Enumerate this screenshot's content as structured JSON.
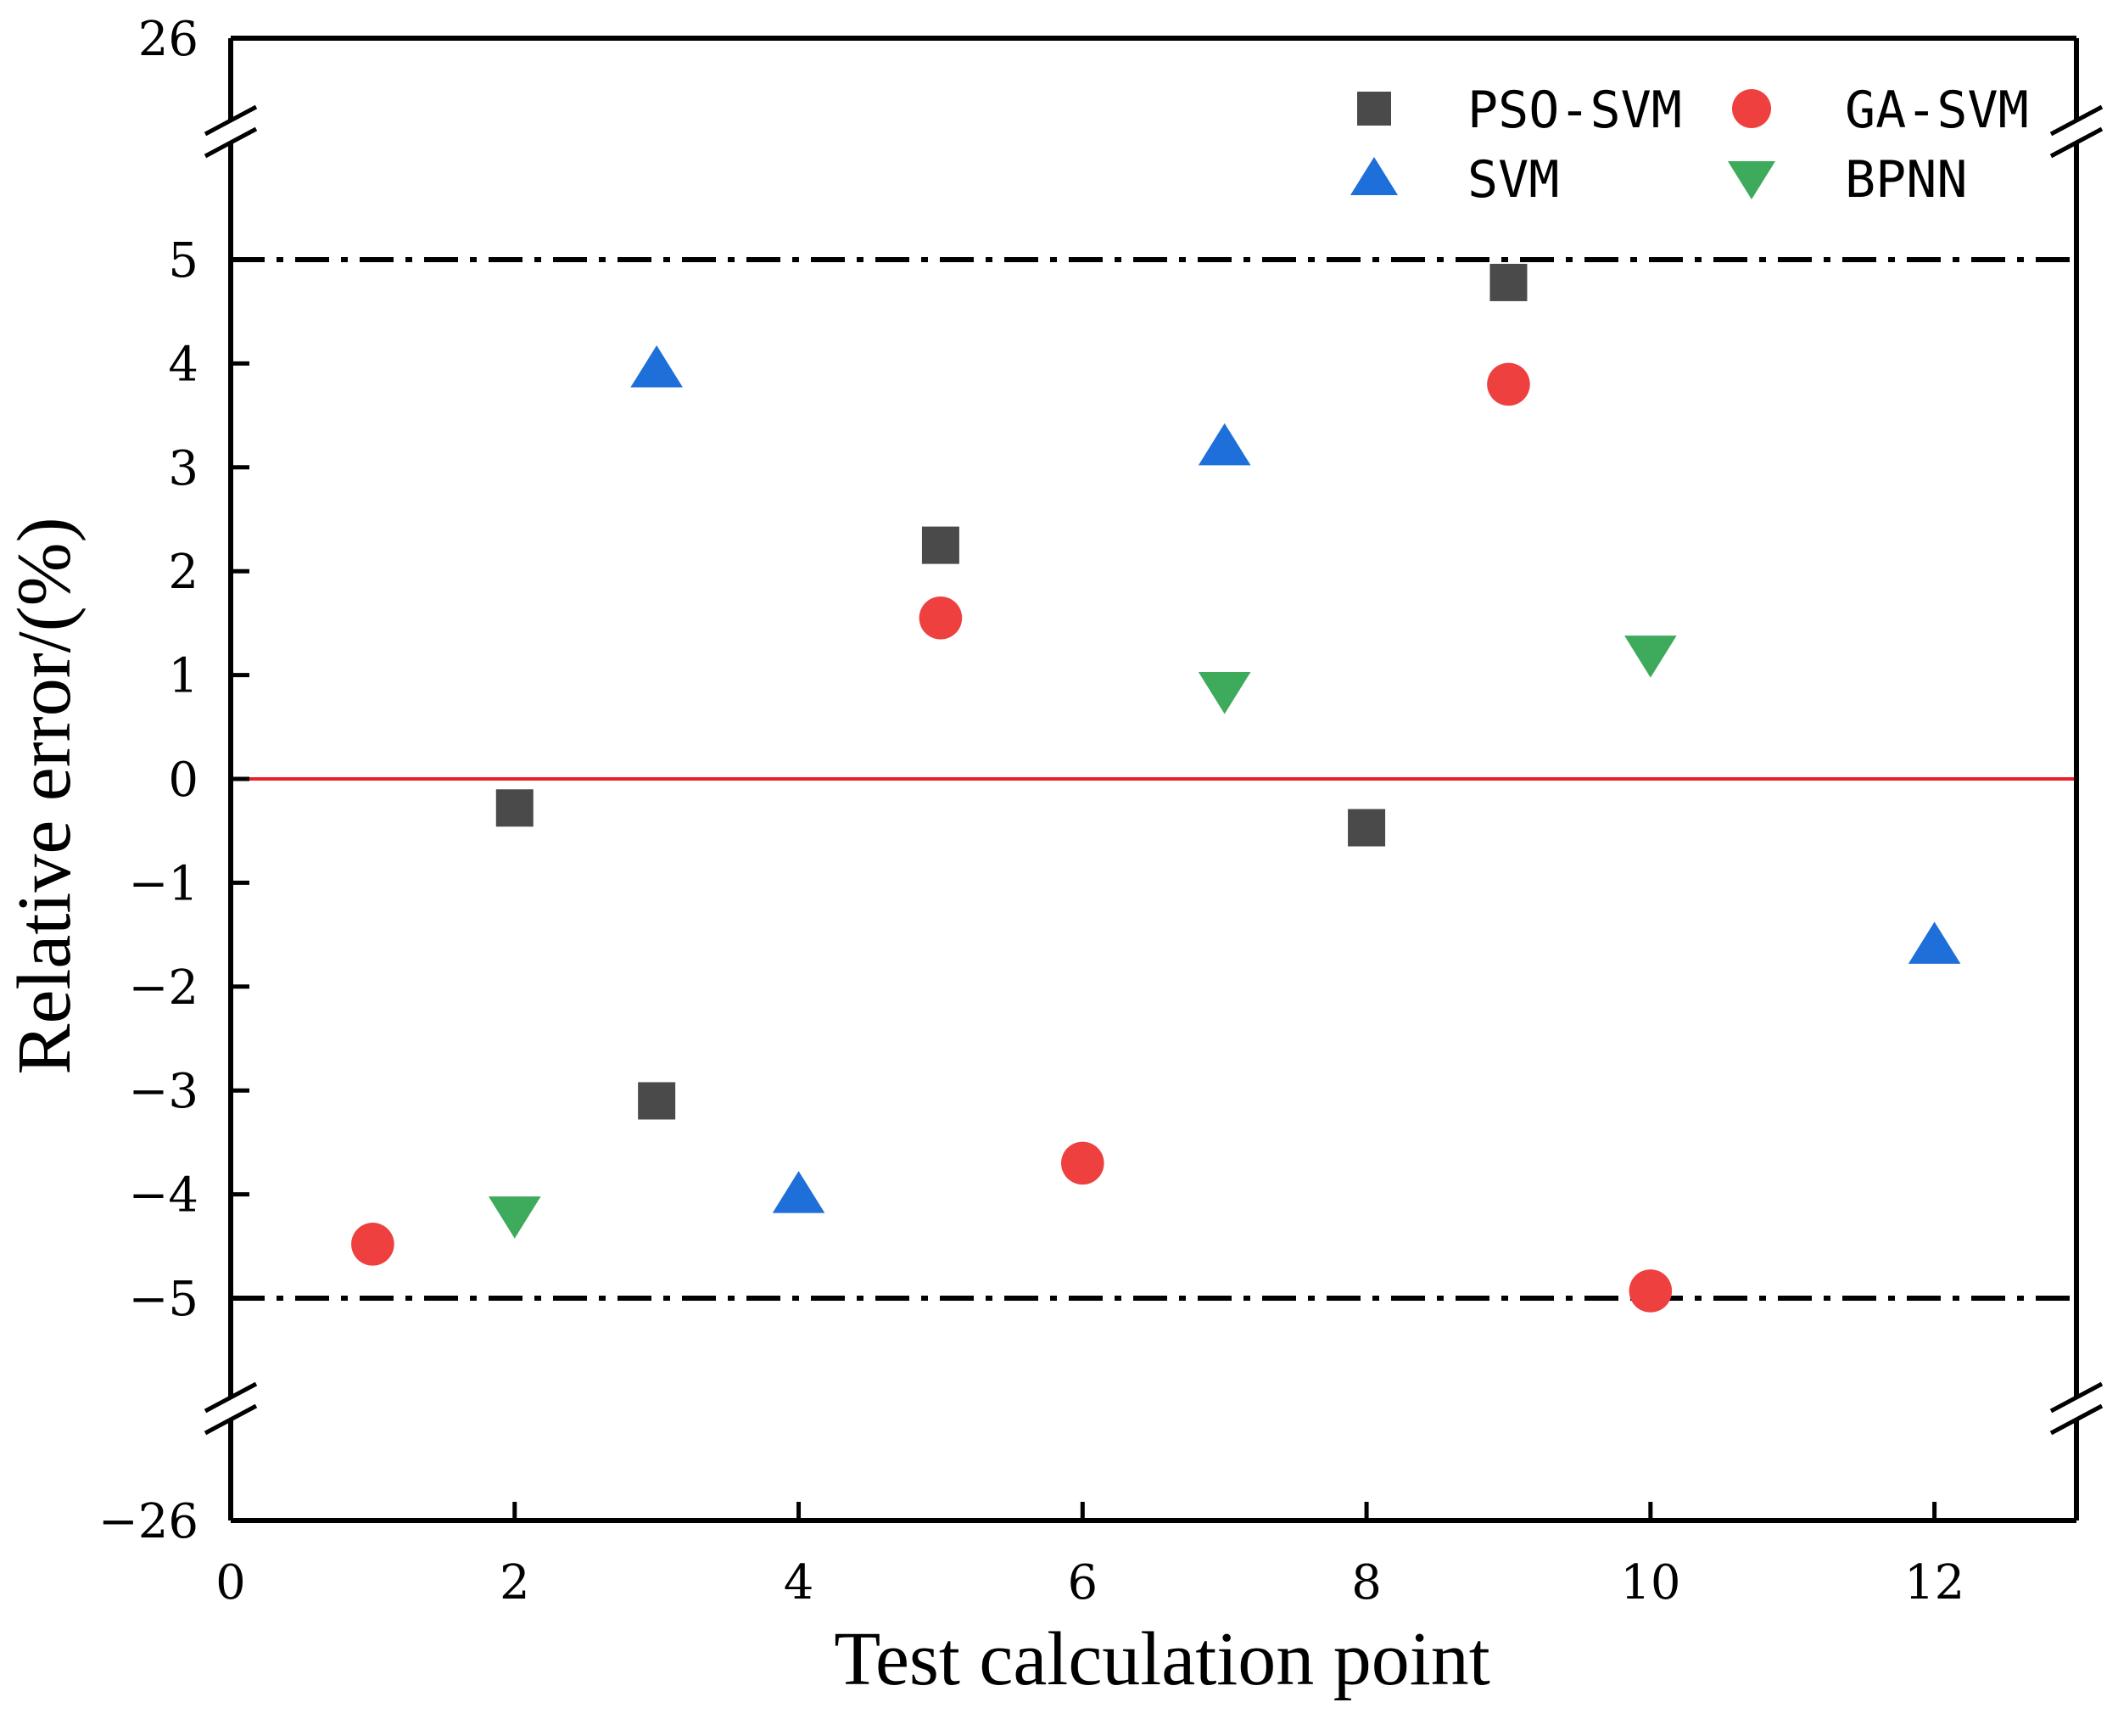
{
  "chart_data": {
    "type": "scatter",
    "title": "",
    "xlabel": "Test calculation point",
    "ylabel": "Relative error/(%)",
    "xlim": [
      0,
      13
    ],
    "ylim": [
      -26,
      26
    ],
    "x_ticks": [
      0,
      2,
      4,
      6,
      8,
      10,
      12
    ],
    "x_tick_labels": [
      "0",
      "2",
      "4",
      "6",
      "8",
      "10",
      "12"
    ],
    "y_ticks": [
      -5,
      -4,
      -3,
      -2,
      -1,
      0,
      1,
      2,
      3,
      4,
      5
    ],
    "y_tick_labels": [
      "−5",
      "−4",
      "−3",
      "−2",
      "−1",
      "0",
      "1",
      "2",
      "3",
      "4",
      "5"
    ],
    "y_break_labels": {
      "top": "26",
      "bottom": "−26"
    },
    "axis_break": {
      "lower": -5.8,
      "upper": 5.8
    },
    "reference_lines": [
      {
        "y": 5,
        "style": "dash-dot",
        "color": "#000000"
      },
      {
        "y": -5,
        "style": "dash-dot",
        "color": "#000000"
      },
      {
        "y": 0,
        "style": "solid",
        "color": "#e8202a"
      }
    ],
    "legend_position": "top-right",
    "series": [
      {
        "name": "PSO-SVM",
        "marker": "square",
        "color": "#4a4a4a",
        "points": [
          [
            2,
            -0.28
          ],
          [
            3,
            -3.1
          ],
          [
            5,
            2.25
          ],
          [
            8,
            -0.47
          ],
          [
            9,
            4.78
          ]
        ]
      },
      {
        "name": "GA-SVM",
        "marker": "circle",
        "color": "#ef4040",
        "points": [
          [
            1,
            -4.48
          ],
          [
            5,
            1.55
          ],
          [
            6,
            -3.7
          ],
          [
            9,
            3.8
          ],
          [
            10,
            -4.93
          ]
        ]
      },
      {
        "name": "SVM",
        "marker": "triangle-up",
        "color": "#1e6fd9",
        "points": [
          [
            3,
            3.95
          ],
          [
            4,
            -4.0
          ],
          [
            7,
            3.2
          ],
          [
            12,
            -1.6
          ]
        ]
      },
      {
        "name": "BPNN",
        "marker": "triangle-down",
        "color": "#3daa5c",
        "points": [
          [
            2,
            -4.2
          ],
          [
            7,
            0.85
          ],
          [
            10,
            1.2
          ]
        ]
      }
    ]
  }
}
